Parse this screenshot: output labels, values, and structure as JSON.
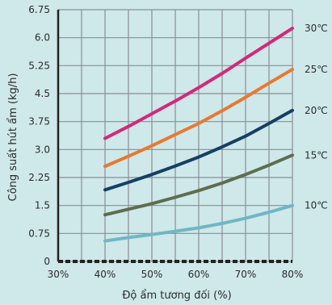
{
  "chart_data": {
    "type": "line",
    "xlabel": "Độ ẩm tương đối (%)",
    "ylabel": "Công suất hút ẩm (kg/h)",
    "xlim": [
      30,
      80
    ],
    "ylim": [
      0,
      6.75
    ],
    "x_ticks": [
      "30%",
      "40%",
      "50%",
      "60%",
      "70%",
      "80%"
    ],
    "x_tick_values": [
      30,
      40,
      50,
      60,
      70,
      80
    ],
    "y_ticks": [
      "0",
      "0.75",
      "1.5",
      "2.25",
      "3.0",
      "3.75",
      "4.5",
      "5.25",
      "6.0",
      "6.75"
    ],
    "y_tick_values": [
      0,
      0.75,
      1.5,
      2.25,
      3.0,
      3.75,
      4.5,
      5.25,
      6.0,
      6.75
    ],
    "grid": true,
    "x": [
      40,
      45,
      50,
      55,
      60,
      65,
      70,
      75,
      80
    ],
    "series": [
      {
        "name": "30℃",
        "color": "#d4287a",
        "values": [
          3.3,
          3.62,
          3.96,
          4.3,
          4.66,
          5.04,
          5.45,
          5.85,
          6.25
        ]
      },
      {
        "name": "25℃",
        "color": "#e8792f",
        "values": [
          2.55,
          2.82,
          3.1,
          3.4,
          3.7,
          4.04,
          4.4,
          4.78,
          5.15
        ]
      },
      {
        "name": "20℃",
        "color": "#163f66",
        "values": [
          1.92,
          2.12,
          2.33,
          2.56,
          2.8,
          3.07,
          3.36,
          3.7,
          4.05
        ]
      },
      {
        "name": "15℃",
        "color": "#5d6e4f",
        "values": [
          1.25,
          1.4,
          1.55,
          1.72,
          1.9,
          2.1,
          2.33,
          2.58,
          2.85
        ]
      },
      {
        "name": "10℃",
        "color": "#6fb7c4",
        "values": [
          0.55,
          0.64,
          0.72,
          0.81,
          0.9,
          1.02,
          1.16,
          1.32,
          1.5
        ]
      }
    ]
  }
}
